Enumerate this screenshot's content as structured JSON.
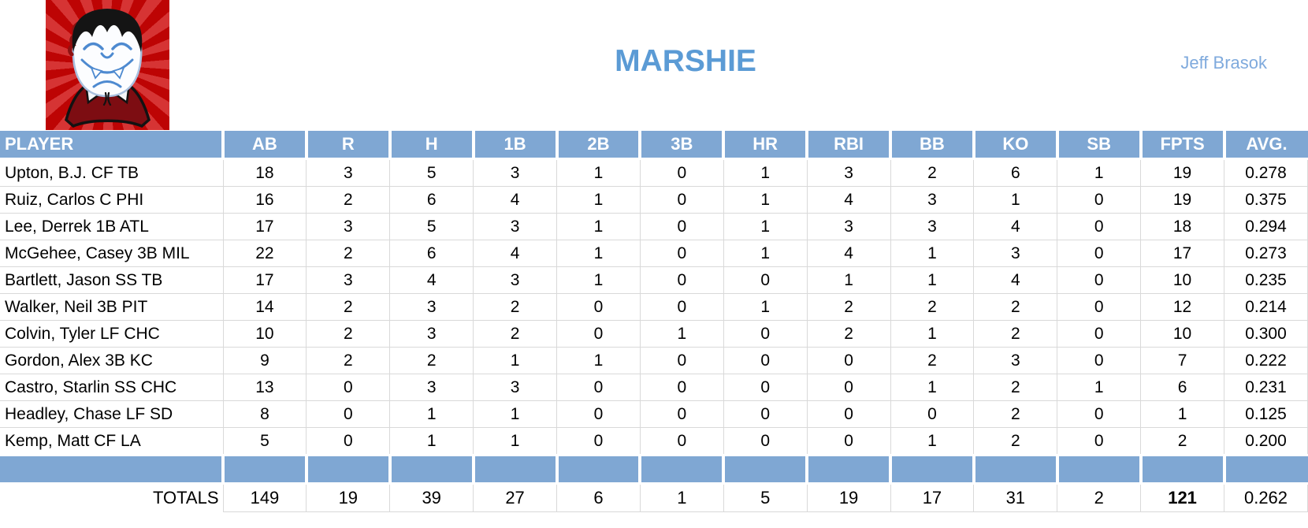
{
  "header": {
    "team_name": "MARSHIE",
    "owner_name": "Jeff Brasok",
    "logo": "vampire-mascot"
  },
  "colors": {
    "header_blue": "#7FA7D3",
    "title_blue": "#5B9BD5",
    "owner_blue": "#7FAADD",
    "grid_gray": "#D9D9D9",
    "logo_red": "#C00606"
  },
  "table": {
    "columns": [
      "PLAYER",
      "AB",
      "R",
      "H",
      "1B",
      "2B",
      "3B",
      "HR",
      "RBI",
      "BB",
      "KO",
      "SB",
      "FPTS",
      "AVG."
    ],
    "rows": [
      {
        "player": "Upton, B.J. CF TB",
        "stats": [
          "18",
          "3",
          "5",
          "3",
          "1",
          "0",
          "1",
          "3",
          "2",
          "6",
          "1",
          "19",
          "0.278"
        ]
      },
      {
        "player": "Ruiz, Carlos C PHI",
        "stats": [
          "16",
          "2",
          "6",
          "4",
          "1",
          "0",
          "1",
          "4",
          "3",
          "1",
          "0",
          "19",
          "0.375"
        ]
      },
      {
        "player": "Lee, Derrek 1B ATL",
        "stats": [
          "17",
          "3",
          "5",
          "3",
          "1",
          "0",
          "1",
          "3",
          "3",
          "4",
          "0",
          "18",
          "0.294"
        ]
      },
      {
        "player": "McGehee, Casey 3B MIL",
        "stats": [
          "22",
          "2",
          "6",
          "4",
          "1",
          "0",
          "1",
          "4",
          "1",
          "3",
          "0",
          "17",
          "0.273"
        ]
      },
      {
        "player": "Bartlett, Jason SS TB",
        "stats": [
          "17",
          "3",
          "4",
          "3",
          "1",
          "0",
          "0",
          "1",
          "1",
          "4",
          "0",
          "10",
          "0.235"
        ]
      },
      {
        "player": "Walker, Neil 3B PIT",
        "stats": [
          "14",
          "2",
          "3",
          "2",
          "0",
          "0",
          "1",
          "2",
          "2",
          "2",
          "0",
          "12",
          "0.214"
        ]
      },
      {
        "player": "Colvin, Tyler LF CHC",
        "stats": [
          "10",
          "2",
          "3",
          "2",
          "0",
          "1",
          "0",
          "2",
          "1",
          "2",
          "0",
          "10",
          "0.300"
        ]
      },
      {
        "player": "Gordon, Alex 3B KC",
        "stats": [
          "9",
          "2",
          "2",
          "1",
          "1",
          "0",
          "0",
          "0",
          "2",
          "3",
          "0",
          "7",
          "0.222"
        ]
      },
      {
        "player": "Castro, Starlin SS CHC",
        "stats": [
          "13",
          "0",
          "3",
          "3",
          "0",
          "0",
          "0",
          "0",
          "1",
          "2",
          "1",
          "6",
          "0.231"
        ]
      },
      {
        "player": "Headley, Chase LF SD",
        "stats": [
          "8",
          "0",
          "1",
          "1",
          "0",
          "0",
          "0",
          "0",
          "0",
          "2",
          "0",
          "1",
          "0.125"
        ]
      },
      {
        "player": "Kemp, Matt CF LA",
        "stats": [
          "5",
          "0",
          "1",
          "1",
          "0",
          "0",
          "0",
          "0",
          "1",
          "2",
          "0",
          "2",
          "0.200"
        ]
      }
    ],
    "totals_label": "TOTALS",
    "totals": [
      "149",
      "19",
      "39",
      "27",
      "6",
      "1",
      "5",
      "19",
      "17",
      "31",
      "2",
      "121",
      "0.262"
    ],
    "totals_bold_column_index": 11
  }
}
